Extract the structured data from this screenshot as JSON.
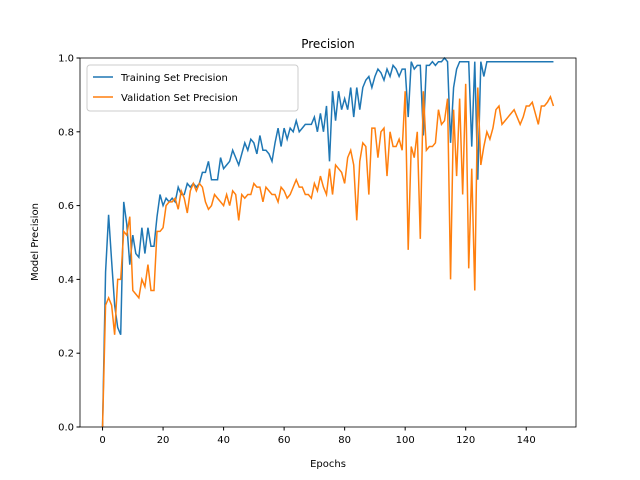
{
  "chart_data": {
    "type": "line",
    "title": "Precision",
    "xlabel": "Epochs",
    "ylabel": "Model Precision",
    "x": [
      0,
      1,
      2,
      3,
      4,
      5,
      6,
      7,
      8,
      9,
      10,
      11,
      12,
      13,
      14,
      15,
      16,
      17,
      18,
      19,
      20,
      21,
      22,
      23,
      24,
      25,
      26,
      27,
      28,
      29,
      30,
      31,
      32,
      33,
      34,
      35,
      36,
      37,
      38,
      39,
      40,
      41,
      42,
      43,
      44,
      45,
      46,
      47,
      48,
      49,
      50,
      51,
      52,
      53,
      54,
      55,
      56,
      57,
      58,
      59,
      60,
      61,
      62,
      63,
      64,
      65,
      66,
      67,
      68,
      69,
      70,
      71,
      72,
      73,
      74,
      75,
      76,
      77,
      78,
      79,
      80,
      81,
      82,
      83,
      84,
      85,
      86,
      87,
      88,
      89,
      90,
      91,
      92,
      93,
      94,
      95,
      96,
      97,
      98,
      99,
      100,
      101,
      102,
      103,
      104,
      105,
      106,
      107,
      108,
      109,
      110,
      111,
      112,
      113,
      114,
      115,
      116,
      117,
      118,
      119,
      120,
      121,
      122,
      123,
      124,
      125,
      126,
      127,
      128,
      129,
      130,
      131,
      132,
      133,
      134,
      135,
      136,
      137,
      138,
      139,
      140,
      141,
      142,
      143,
      144,
      145,
      146,
      147,
      148,
      149
    ],
    "series": [
      {
        "name": "Training Set Precision",
        "color": "#1f77b4",
        "values": [
          0.0,
          0.42,
          0.575,
          0.45,
          0.33,
          0.27,
          0.25,
          0.61,
          0.55,
          0.44,
          0.52,
          0.47,
          0.46,
          0.54,
          0.47,
          0.54,
          0.49,
          0.49,
          0.57,
          0.63,
          0.6,
          0.62,
          0.61,
          0.62,
          0.61,
          0.65,
          0.63,
          0.63,
          0.66,
          0.65,
          0.66,
          0.65,
          0.66,
          0.69,
          0.69,
          0.72,
          0.67,
          0.67,
          0.67,
          0.73,
          0.7,
          0.71,
          0.72,
          0.75,
          0.73,
          0.71,
          0.74,
          0.77,
          0.75,
          0.78,
          0.77,
          0.74,
          0.79,
          0.75,
          0.75,
          0.74,
          0.72,
          0.77,
          0.81,
          0.76,
          0.81,
          0.78,
          0.81,
          0.8,
          0.83,
          0.8,
          0.81,
          0.82,
          0.82,
          0.82,
          0.84,
          0.8,
          0.85,
          0.8,
          0.87,
          0.72,
          0.91,
          0.83,
          0.91,
          0.86,
          0.89,
          0.86,
          0.92,
          0.84,
          0.92,
          0.86,
          0.92,
          0.94,
          0.95,
          0.92,
          0.95,
          0.97,
          0.96,
          0.94,
          0.97,
          0.95,
          0.98,
          0.97,
          0.95,
          0.97,
          0.97,
          0.84,
          0.99,
          0.97,
          0.98,
          0.98,
          0.79,
          0.98,
          0.98,
          0.99,
          0.98,
          0.99,
          0.99,
          1.0,
          0.99,
          0.77,
          0.92,
          0.97,
          0.99,
          0.99,
          0.99,
          0.99,
          0.76,
          0.99,
          0.67,
          0.99,
          0.95,
          0.99,
          0.99,
          0.99,
          0.99,
          0.99,
          0.99,
          0.99,
          0.99,
          0.99,
          0.99,
          0.99,
          0.99,
          0.99,
          0.99,
          0.99,
          0.99,
          0.99,
          0.99,
          0.99,
          0.99,
          0.99,
          0.99,
          0.99
        ]
      },
      {
        "name": "Validation Set Precision",
        "color": "#ff7f0e",
        "values": [
          0.0,
          0.33,
          0.35,
          0.33,
          0.25,
          0.4,
          0.4,
          0.53,
          0.52,
          0.57,
          0.37,
          0.36,
          0.35,
          0.4,
          0.38,
          0.44,
          0.37,
          0.37,
          0.53,
          0.53,
          0.54,
          0.6,
          0.61,
          0.61,
          0.62,
          0.59,
          0.64,
          0.62,
          0.58,
          0.64,
          0.66,
          0.64,
          0.66,
          0.65,
          0.61,
          0.59,
          0.6,
          0.63,
          0.62,
          0.61,
          0.6,
          0.63,
          0.6,
          0.64,
          0.63,
          0.56,
          0.63,
          0.62,
          0.63,
          0.63,
          0.66,
          0.65,
          0.65,
          0.61,
          0.65,
          0.64,
          0.63,
          0.63,
          0.61,
          0.65,
          0.64,
          0.62,
          0.63,
          0.65,
          0.67,
          0.65,
          0.65,
          0.63,
          0.63,
          0.62,
          0.66,
          0.64,
          0.68,
          0.65,
          0.63,
          0.7,
          0.63,
          0.71,
          0.7,
          0.69,
          0.66,
          0.73,
          0.75,
          0.71,
          0.56,
          0.72,
          0.77,
          0.76,
          0.63,
          0.81,
          0.81,
          0.73,
          0.8,
          0.81,
          0.68,
          0.8,
          0.76,
          0.76,
          0.78,
          0.75,
          0.91,
          0.48,
          0.76,
          0.73,
          0.8,
          0.51,
          0.91,
          0.75,
          0.76,
          0.76,
          0.77,
          0.86,
          0.82,
          0.83,
          0.89,
          0.4,
          0.86,
          0.68,
          0.89,
          0.63,
          0.93,
          0.43,
          0.7,
          0.37,
          0.92,
          0.71,
          0.76,
          0.8,
          0.78,
          0.81,
          0.86,
          0.87,
          0.82,
          0.83,
          0.84,
          0.85,
          0.86,
          0.84,
          0.82,
          0.84,
          0.87,
          0.87,
          0.88,
          0.85,
          0.82,
          0.87,
          0.87,
          0.88,
          0.895,
          0.87
        ]
      }
    ],
    "xlim": [
      -7.45,
      156.45
    ],
    "ylim": [
      0,
      1
    ],
    "xticks": [
      0,
      20,
      40,
      60,
      80,
      100,
      120,
      140
    ],
    "yticks": [
      {
        "value": 0,
        "label": "0.0"
      },
      0.2,
      0.4,
      0.6,
      0.8,
      {
        "value": 1,
        "label": "1.0"
      }
    ],
    "legend": "upper left"
  }
}
